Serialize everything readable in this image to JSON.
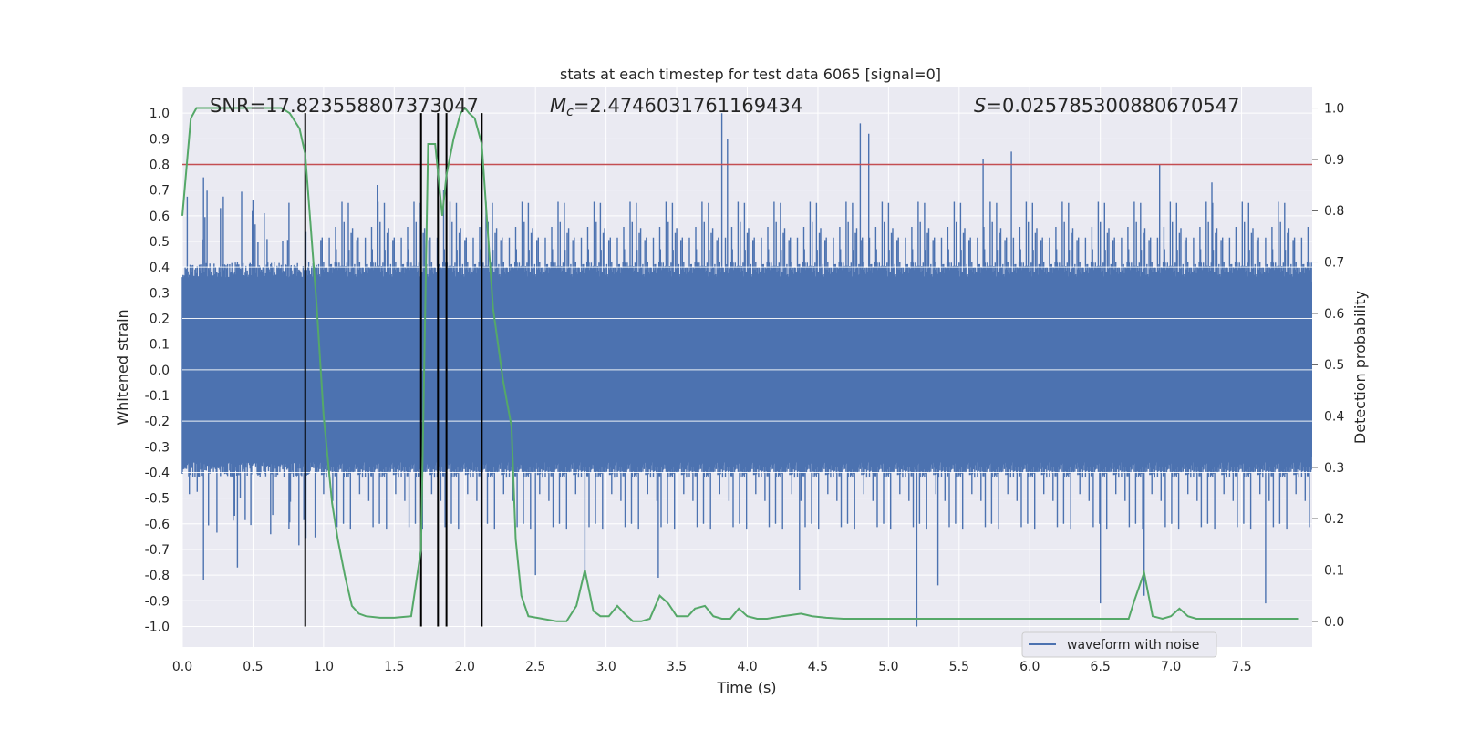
{
  "chart_data": {
    "type": "line",
    "title": "stats at each timestep for test data 6065 [signal=0]",
    "xlabel": "Time (s)",
    "ylabel_left": "Whitened strain",
    "ylabel_right": "Detection probability",
    "xlim": [
      0,
      8
    ],
    "ylim_left": [
      -1.08,
      1.1
    ],
    "ylim_right": [
      -0.05,
      1.04
    ],
    "x_ticks": [
      "0.0",
      "0.5",
      "1.0",
      "1.5",
      "2.0",
      "2.5",
      "3.0",
      "3.5",
      "4.0",
      "4.5",
      "5.0",
      "5.5",
      "6.0",
      "6.5",
      "7.0",
      "7.5"
    ],
    "y_left_ticks": [
      "-1.0",
      "-0.9",
      "-0.8",
      "-0.7",
      "-0.6",
      "-0.5",
      "-0.4",
      "-0.3",
      "-0.2",
      "-0.1",
      "0.0",
      "0.1",
      "0.2",
      "0.3",
      "0.4",
      "0.5",
      "0.6",
      "0.7",
      "0.8",
      "0.9",
      "1.0"
    ],
    "y_right_ticks": [
      "0.0",
      "0.1",
      "0.2",
      "0.3",
      "0.4",
      "0.5",
      "0.6",
      "0.7",
      "0.8",
      "0.9",
      "1.0"
    ],
    "annotations": {
      "snr": "SNR=17.823558807373047",
      "mc": "=2.4746031761169434",
      "mc_symbol": "M",
      "mc_sub": "c",
      "s": "=0.025785300880670547",
      "s_symbol": "S"
    },
    "threshold": {
      "value": 0.8,
      "axis": "left",
      "color": "#c44e52"
    },
    "vlines_x": [
      0.87,
      1.69,
      1.81,
      1.87,
      2.12
    ],
    "legend": {
      "label": "waveform with noise",
      "placement": "lower right"
    },
    "grid": true,
    "colors": {
      "waveform": "#4c72b0",
      "probability": "#55a868",
      "vlines": "#000000",
      "background": "#eaeaf2"
    },
    "series": [
      {
        "name": "waveform with noise",
        "axis": "left",
        "note_shape": "dense noise, typical envelope about +/-0.4",
        "peaks_up": [
          [
            0.15,
            0.75
          ],
          [
            0.27,
            0.63
          ],
          [
            0.5,
            0.66
          ],
          [
            0.58,
            0.61
          ],
          [
            1.38,
            0.72
          ],
          [
            1.85,
            0.7
          ],
          [
            3.82,
            1.0
          ],
          [
            3.86,
            0.9
          ],
          [
            4.8,
            0.96
          ],
          [
            4.86,
            0.92
          ],
          [
            5.67,
            0.82
          ],
          [
            5.87,
            0.85
          ],
          [
            6.92,
            0.8
          ],
          [
            7.29,
            0.73
          ]
        ],
        "peaks_down": [
          [
            0.15,
            -0.82
          ],
          [
            0.39,
            -0.77
          ],
          [
            2.5,
            -0.8
          ],
          [
            2.85,
            -0.8
          ],
          [
            3.37,
            -0.81
          ],
          [
            4.37,
            -0.86
          ],
          [
            5.2,
            -1.0
          ],
          [
            5.35,
            -0.84
          ],
          [
            6.5,
            -0.91
          ],
          [
            6.81,
            -0.88
          ],
          [
            7.67,
            -0.91
          ]
        ]
      },
      {
        "name": "",
        "axis": "right",
        "x": [
          0.0,
          0.06,
          0.1,
          0.2,
          0.3,
          0.5,
          0.7,
          0.76,
          0.83,
          0.87,
          0.95,
          1.0,
          1.06,
          1.1,
          1.15,
          1.2,
          1.25,
          1.3,
          1.4,
          1.5,
          1.62,
          1.69,
          1.74,
          1.79,
          1.84,
          1.87,
          1.92,
          1.97,
          2.0,
          2.03,
          2.07,
          2.12,
          2.2,
          2.27,
          2.33,
          2.36,
          2.4,
          2.45,
          2.55,
          2.65,
          2.72,
          2.79,
          2.85,
          2.91,
          2.96,
          3.02,
          3.08,
          3.13,
          3.19,
          3.25,
          3.31,
          3.38,
          3.44,
          3.5,
          3.58,
          3.63,
          3.7,
          3.76,
          3.82,
          3.88,
          3.94,
          4.0,
          4.07,
          4.14,
          4.25,
          4.38,
          4.46,
          4.56,
          4.68,
          4.8,
          5.0,
          5.2,
          5.5,
          5.8,
          6.2,
          6.5,
          6.7,
          6.74,
          6.81,
          6.87,
          6.94,
          7.0,
          7.06,
          7.12,
          7.18,
          7.3,
          7.5,
          7.7,
          7.9
        ],
        "y": [
          0.79,
          0.98,
          1.0,
          1.0,
          1.0,
          1.0,
          1.0,
          0.99,
          0.96,
          0.91,
          0.62,
          0.4,
          0.23,
          0.16,
          0.09,
          0.03,
          0.015,
          0.01,
          0.007,
          0.007,
          0.01,
          0.14,
          0.93,
          0.93,
          0.79,
          0.87,
          0.94,
          0.99,
          1.0,
          0.99,
          0.98,
          0.93,
          0.61,
          0.47,
          0.38,
          0.16,
          0.05,
          0.01,
          0.005,
          0.0,
          0.0,
          0.03,
          0.1,
          0.02,
          0.01,
          0.01,
          0.03,
          0.015,
          0.0,
          0.0,
          0.005,
          0.05,
          0.035,
          0.01,
          0.01,
          0.025,
          0.03,
          0.01,
          0.005,
          0.005,
          0.025,
          0.01,
          0.005,
          0.005,
          0.01,
          0.015,
          0.01,
          0.007,
          0.005,
          0.005,
          0.005,
          0.005,
          0.005,
          0.005,
          0.005,
          0.005,
          0.005,
          0.04,
          0.095,
          0.01,
          0.005,
          0.01,
          0.025,
          0.01,
          0.005,
          0.005,
          0.005,
          0.005,
          0.005
        ]
      }
    ]
  }
}
